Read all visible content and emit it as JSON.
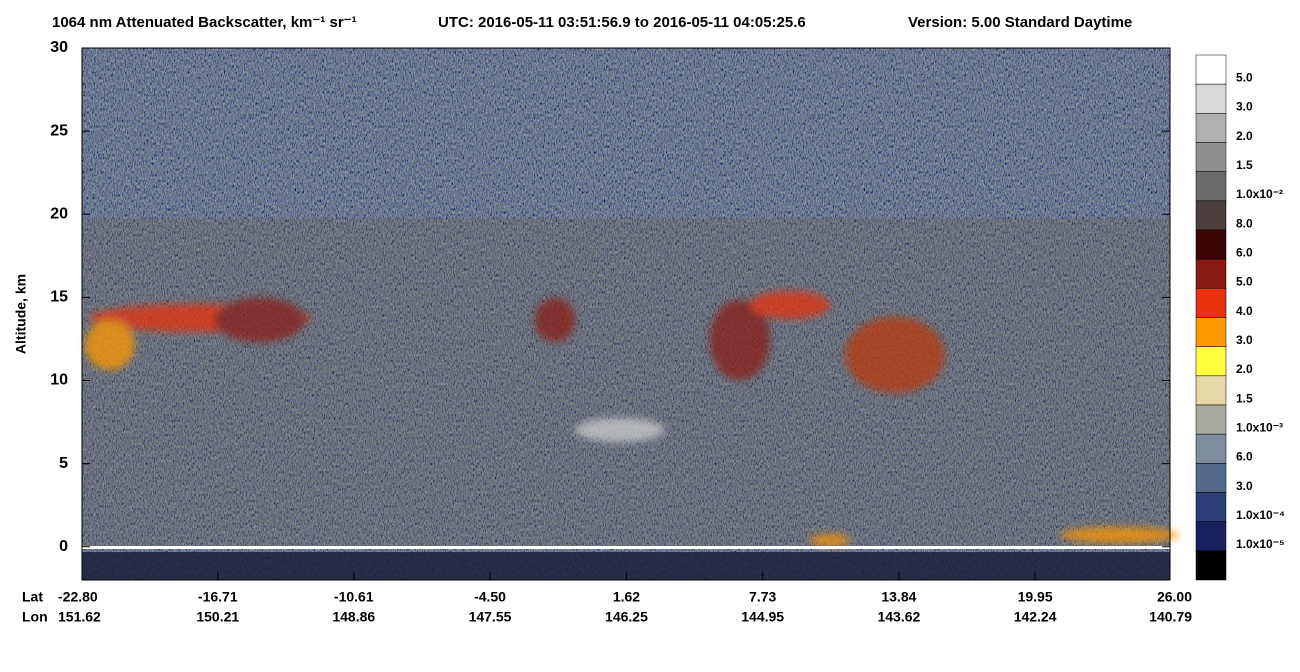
{
  "chart_data": {
    "type": "heatmap",
    "title": "1064 nm Attenuated Backscatter, km⁻¹ sr⁻¹",
    "time_range": "UTC:  2016-05-11 03:51:56.9  to  2016-05-11 04:05:25.6",
    "version": "Version: 5.00  Standard  Daytime",
    "ylabel": "Altitude, km",
    "ylim": [
      -2,
      30
    ],
    "yticks": [
      0,
      5,
      10,
      15,
      20,
      25,
      30
    ],
    "xlim": [
      -22.8,
      26.0
    ],
    "x_row_labels": [
      "Lat",
      "Lon"
    ],
    "xticks": [
      {
        "value": -22.8,
        "label": "-22.80"
      },
      {
        "value": -16.71,
        "label": "-16.71"
      },
      {
        "value": -10.61,
        "label": "-10.61"
      },
      {
        "value": -4.5,
        "label": "-4.50"
      },
      {
        "value": 1.62,
        "label": "1.62"
      },
      {
        "value": 7.73,
        "label": "7.73"
      },
      {
        "value": 13.84,
        "label": "13.84"
      },
      {
        "value": 19.95,
        "label": "19.95"
      },
      {
        "value": 26.0,
        "label": "26.00"
      }
    ],
    "lon_labels": [
      "151.62",
      "150.21",
      "148.86",
      "147.55",
      "146.25",
      "144.95",
      "143.62",
      "142.24",
      "140.79"
    ],
    "colorbar": {
      "colors": [
        "#ffffff",
        "#d9d9d9",
        "#b0b0b0",
        "#8f8f8f",
        "#6b6b6b",
        "#4a3f3c",
        "#3a0606",
        "#8a1a12",
        "#e8320e",
        "#ff9900",
        "#ffff40",
        "#e8d8a8",
        "#a8aaa0",
        "#7e8c9e",
        "#55698a",
        "#2e3f78",
        "#1a1f5e",
        "#000000"
      ],
      "ticks": [
        {
          "value": 0.05,
          "label": "5.0"
        },
        {
          "value": 0.03,
          "label": "3.0"
        },
        {
          "value": 0.02,
          "label": "2.0"
        },
        {
          "value": 0.015,
          "label": "1.5"
        },
        {
          "value": 0.01,
          "label": "1.0x10⁻²"
        },
        {
          "value": 0.008,
          "label": "8.0"
        },
        {
          "value": 0.006,
          "label": "6.0"
        },
        {
          "value": 0.005,
          "label": "5.0"
        },
        {
          "value": 0.004,
          "label": "4.0"
        },
        {
          "value": 0.003,
          "label": "3.0"
        },
        {
          "value": 0.002,
          "label": "2.0"
        },
        {
          "value": 0.0015,
          "label": "1.5"
        },
        {
          "value": 0.001,
          "label": "1.0x10⁻³"
        },
        {
          "value": 0.0006,
          "label": "6.0"
        },
        {
          "value": 0.0003,
          "label": "3.0"
        },
        {
          "value": 0.0001,
          "label": "1.0x10⁻⁴"
        },
        {
          "value": 1e-05,
          "label": "1.0x10⁻⁵"
        },
        null
      ]
    }
  }
}
